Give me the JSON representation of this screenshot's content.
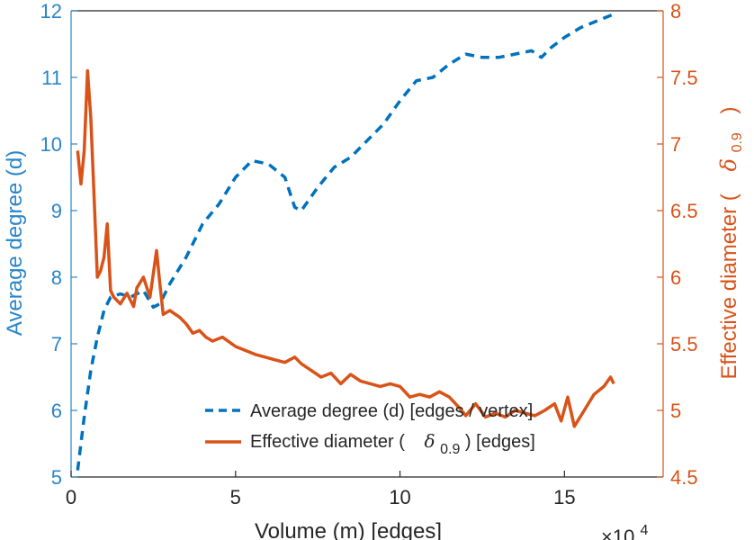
{
  "chart_data": {
    "type": "line",
    "xlabel": "Volume (m) [edges]",
    "x_multiplier_label": "×10⁴",
    "x_multiplier_base": "×10",
    "x_multiplier_exp": "4",
    "xlim": [
      0,
      18
    ],
    "xticks": [
      0,
      5,
      10,
      15
    ],
    "y_left": {
      "label": "Average degree (d)",
      "lim": [
        5,
        12
      ],
      "ticks": [
        5,
        6,
        7,
        8,
        9,
        10,
        11,
        12
      ],
      "color": "#2a85c8"
    },
    "y_right": {
      "label_prefix": "Effective diameter (",
      "label_symbol": "δ",
      "label_sub": "0.9",
      "label_suffix": ")",
      "lim": [
        4.5,
        8
      ],
      "ticks": [
        "4.5",
        "5",
        "5.5",
        "6",
        "6.5",
        "7",
        "7.5",
        "8"
      ],
      "color": "#d95319"
    },
    "series": [
      {
        "name": "Average degree (d) [edges / vertex]",
        "axis": "left",
        "style": "dashed",
        "color": "#0072bd",
        "x": [
          0.2,
          0.4,
          0.6,
          0.8,
          1.0,
          1.2,
          1.5,
          1.8,
          2.2,
          2.5,
          2.7,
          3.0,
          3.5,
          4.0,
          4.5,
          5.0,
          5.5,
          6.0,
          6.5,
          6.8,
          7.0,
          7.5,
          8.0,
          8.5,
          9.0,
          9.5,
          10.0,
          10.5,
          11.0,
          11.5,
          12.0,
          12.5,
          13.0,
          13.5,
          14.0,
          14.3,
          14.6,
          15.0,
          15.5,
          16.0,
          16.5
        ],
        "y": [
          5.1,
          5.9,
          6.6,
          7.1,
          7.5,
          7.7,
          7.75,
          7.7,
          7.8,
          7.55,
          7.6,
          7.9,
          8.3,
          8.8,
          9.1,
          9.5,
          9.75,
          9.7,
          9.5,
          9.05,
          9.0,
          9.35,
          9.65,
          9.8,
          10.05,
          10.3,
          10.65,
          10.95,
          11.0,
          11.2,
          11.35,
          11.3,
          11.3,
          11.35,
          11.4,
          11.3,
          11.45,
          11.6,
          11.75,
          11.85,
          11.95
        ]
      },
      {
        "name_prefix": "Effective diameter (",
        "name_symbol": "δ",
        "name_sub": "0.9",
        "name_suffix": ") [edges]",
        "axis": "right",
        "style": "solid",
        "color": "#d95319",
        "x": [
          0.2,
          0.3,
          0.4,
          0.5,
          0.6,
          0.7,
          0.8,
          0.9,
          1.0,
          1.1,
          1.2,
          1.3,
          1.5,
          1.7,
          1.9,
          2.0,
          2.2,
          2.4,
          2.6,
          2.7,
          2.8,
          3.0,
          3.3,
          3.5,
          3.7,
          3.9,
          4.1,
          4.3,
          4.6,
          5.0,
          5.3,
          5.6,
          5.9,
          6.2,
          6.5,
          6.8,
          7.0,
          7.3,
          7.6,
          7.9,
          8.2,
          8.5,
          8.8,
          9.1,
          9.4,
          9.7,
          10.0,
          10.3,
          10.6,
          10.9,
          11.2,
          11.5,
          11.8,
          12.0,
          12.3,
          12.6,
          12.9,
          13.2,
          13.5,
          13.8,
          14.1,
          14.4,
          14.7,
          14.9,
          15.1,
          15.3,
          15.6,
          15.9,
          16.2,
          16.4,
          16.5
        ],
        "y": [
          6.95,
          6.7,
          6.95,
          7.55,
          7.2,
          6.6,
          6.0,
          6.05,
          6.15,
          6.4,
          5.9,
          5.85,
          5.8,
          5.88,
          5.78,
          5.92,
          6.0,
          5.85,
          6.2,
          5.95,
          5.72,
          5.75,
          5.7,
          5.65,
          5.58,
          5.6,
          5.55,
          5.52,
          5.55,
          5.48,
          5.45,
          5.42,
          5.4,
          5.38,
          5.36,
          5.4,
          5.35,
          5.3,
          5.25,
          5.28,
          5.2,
          5.27,
          5.22,
          5.2,
          5.18,
          5.2,
          5.18,
          5.1,
          5.12,
          5.1,
          5.14,
          5.1,
          5.02,
          4.96,
          5.05,
          4.95,
          4.98,
          4.95,
          5.0,
          4.98,
          4.96,
          5.0,
          5.05,
          4.92,
          5.1,
          4.88,
          5.0,
          5.12,
          5.18,
          5.25,
          5.2
        ]
      }
    ],
    "legend_location": "bottom-right"
  }
}
